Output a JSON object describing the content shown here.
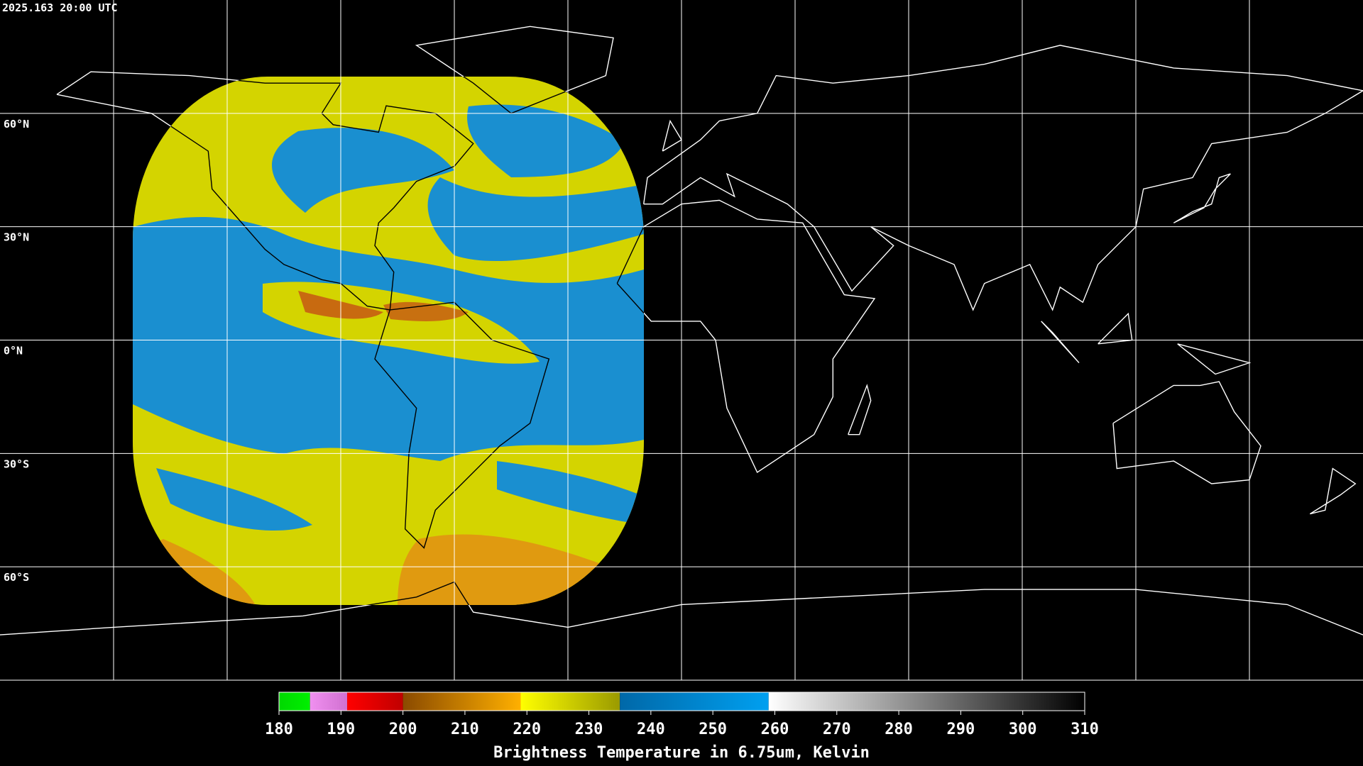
{
  "timestamp": "2025.163 20:00 UTC",
  "map": {
    "xlim": [
      -180,
      180
    ],
    "ylim": [
      -90,
      90
    ],
    "lat_lines": [
      {
        "value": 60,
        "label": "60°N"
      },
      {
        "value": 30,
        "label": "30°N"
      },
      {
        "value": 0,
        "label": "0°N"
      },
      {
        "value": -30,
        "label": "30°S"
      },
      {
        "value": -60,
        "label": "60°S"
      }
    ],
    "lon_lines": [
      -150,
      -120,
      -90,
      -60,
      -30,
      0,
      30,
      60,
      90,
      120,
      150
    ]
  },
  "colorbar": {
    "title": "Brightness Temperature in 6.75um, Kelvin",
    "range": [
      180,
      310
    ],
    "ticks": [
      180,
      190,
      200,
      210,
      220,
      230,
      240,
      250,
      260,
      270,
      280,
      290,
      300,
      310
    ],
    "segments": [
      {
        "from": 180,
        "to": 185,
        "colors": [
          "#00d800",
          "#00f000"
        ]
      },
      {
        "from": 185,
        "to": 191,
        "colors": [
          "#f090f0",
          "#d070d0"
        ]
      },
      {
        "from": 191,
        "to": 200,
        "colors": [
          "#ff0000",
          "#c00000"
        ]
      },
      {
        "from": 200,
        "to": 219,
        "colors": [
          "#8a4a00",
          "#ffb000"
        ]
      },
      {
        "from": 219,
        "to": 235,
        "colors": [
          "#ffff00",
          "#9a9a00"
        ]
      },
      {
        "from": 235,
        "to": 259,
        "colors": [
          "#0068a8",
          "#00a0f0"
        ]
      },
      {
        "from": 259,
        "to": 310,
        "colors": [
          "#ffffff",
          "#000000"
        ]
      }
    ]
  }
}
